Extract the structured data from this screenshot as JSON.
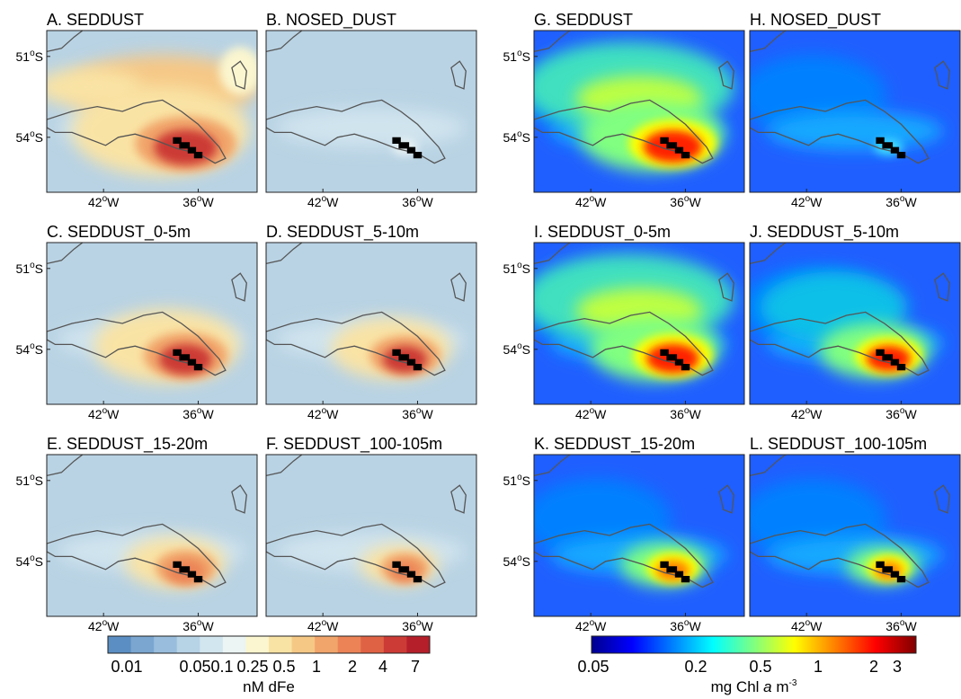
{
  "panels": [
    {
      "id": "A",
      "title": "A. SEDDUST",
      "kind": "fe",
      "col": 0,
      "row": 0,
      "plume": 1.0,
      "land": "black"
    },
    {
      "id": "B",
      "title": "B. NOSED_DUST",
      "kind": "fe",
      "col": 1,
      "row": 0,
      "plume": 0.0,
      "land": "black"
    },
    {
      "id": "C",
      "title": "C. SEDDUST_0-5m",
      "kind": "fe",
      "col": 0,
      "row": 1,
      "plume": 0.75,
      "land": "black"
    },
    {
      "id": "D",
      "title": "D. SEDDUST_5-10m",
      "kind": "fe",
      "col": 1,
      "row": 1,
      "plume": 0.55,
      "land": "black"
    },
    {
      "id": "E",
      "title": "E. SEDDUST_15-20m",
      "kind": "fe",
      "col": 0,
      "row": 2,
      "plume": 0.4,
      "land": "black"
    },
    {
      "id": "F",
      "title": "F. SEDDUST_100-105m",
      "kind": "fe",
      "col": 1,
      "row": 2,
      "plume": 0.22,
      "land": "black"
    },
    {
      "id": "G",
      "title": "G. SEDDUST",
      "kind": "chl",
      "col": 2,
      "row": 0,
      "plume": 1.0,
      "land": "black"
    },
    {
      "id": "H",
      "title": "H. NOSED_DUST",
      "kind": "chl",
      "col": 3,
      "row": 0,
      "plume": 0.05,
      "land": "black"
    },
    {
      "id": "I",
      "title": "I. SEDDUST_0-5m",
      "kind": "chl",
      "col": 2,
      "row": 1,
      "plume": 0.85,
      "land": "black"
    },
    {
      "id": "J",
      "title": "J. SEDDUST_5-10m",
      "kind": "chl",
      "col": 3,
      "row": 1,
      "plume": 0.65,
      "land": "black"
    },
    {
      "id": "K",
      "title": "K. SEDDUST_15-20m",
      "kind": "chl",
      "col": 2,
      "row": 2,
      "plume": 0.4,
      "land": "black"
    },
    {
      "id": "L",
      "title": "L. SEDDUST_100-105m",
      "kind": "chl",
      "col": 3,
      "row": 2,
      "plume": 0.25,
      "land": "black"
    }
  ],
  "axes": {
    "lat_ticks": [
      {
        "deg": "51",
        "unit": "S"
      },
      {
        "deg": "54",
        "unit": "S"
      }
    ],
    "lon_ticks": [
      {
        "deg": "42",
        "unit": "W"
      },
      {
        "deg": "36",
        "unit": "W"
      }
    ],
    "degree_symbol": "o"
  },
  "colorbars": [
    {
      "name": "fe",
      "unit": "nM dFe",
      "tick_labels": [
        "0.01",
        "0.05",
        "0.1",
        "0.25",
        "0.5",
        "1",
        "2",
        "4",
        "7"
      ],
      "colors": [
        "#5b8fc3",
        "#7aa6d0",
        "#99bddc",
        "#b7d3e6",
        "#d2e6ef",
        "#ecf4f4",
        "#fbf6cf",
        "#f9e3a4",
        "#f6c886",
        "#f1a56b",
        "#eb8356",
        "#e06244",
        "#cc3b36",
        "#b51f2a"
      ]
    },
    {
      "name": "chl",
      "unit_text": "mg Chl ",
      "unit_italic": "a",
      "unit_tail": " m",
      "unit_sup": "-3",
      "tick_labels": [
        "0.05",
        "0.2",
        "0.5",
        "1",
        "2",
        "3"
      ],
      "colors": [
        "#00008f",
        "#0000ff",
        "#0080ff",
        "#00ffff",
        "#80ff80",
        "#ffff00",
        "#ff8000",
        "#ff0000",
        "#800000"
      ]
    }
  ]
}
